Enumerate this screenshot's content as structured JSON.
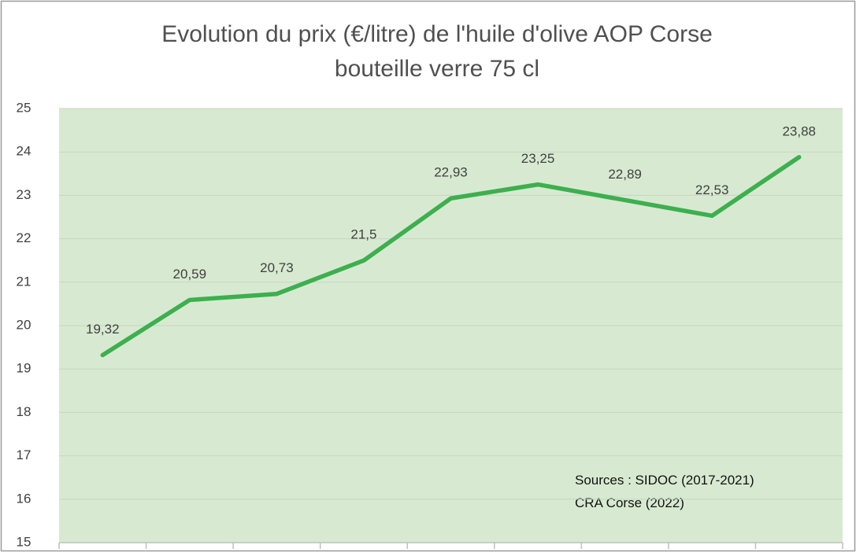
{
  "chart_data": {
    "type": "line",
    "title": [
      "Evolution du prix (€/litre)  de l'huile d'olive AOP Corse",
      "bouteille verre 75 cl"
    ],
    "categories": [
      null,
      null,
      null,
      null,
      null,
      null,
      null,
      null,
      null
    ],
    "series": [
      {
        "name": null,
        "color": "#3daf4f",
        "values": [
          19.32,
          20.59,
          20.73,
          21.5,
          22.93,
          23.25,
          22.89,
          22.53,
          23.88
        ],
        "value_labels": [
          "19,32",
          "20,59",
          "20,73",
          "21,5",
          "22,93",
          "23,25",
          "22,89",
          "22,53",
          "23,88"
        ]
      }
    ],
    "ylim": [
      15,
      25
    ],
    "yticks": [
      15,
      16,
      17,
      18,
      19,
      20,
      21,
      22,
      23,
      24,
      25
    ],
    "grid": true,
    "plot_background": "#d7ead1",
    "annotations": [
      "Sources : SIDOC (2017-2021)",
      "CRA Corse (2022)"
    ]
  }
}
